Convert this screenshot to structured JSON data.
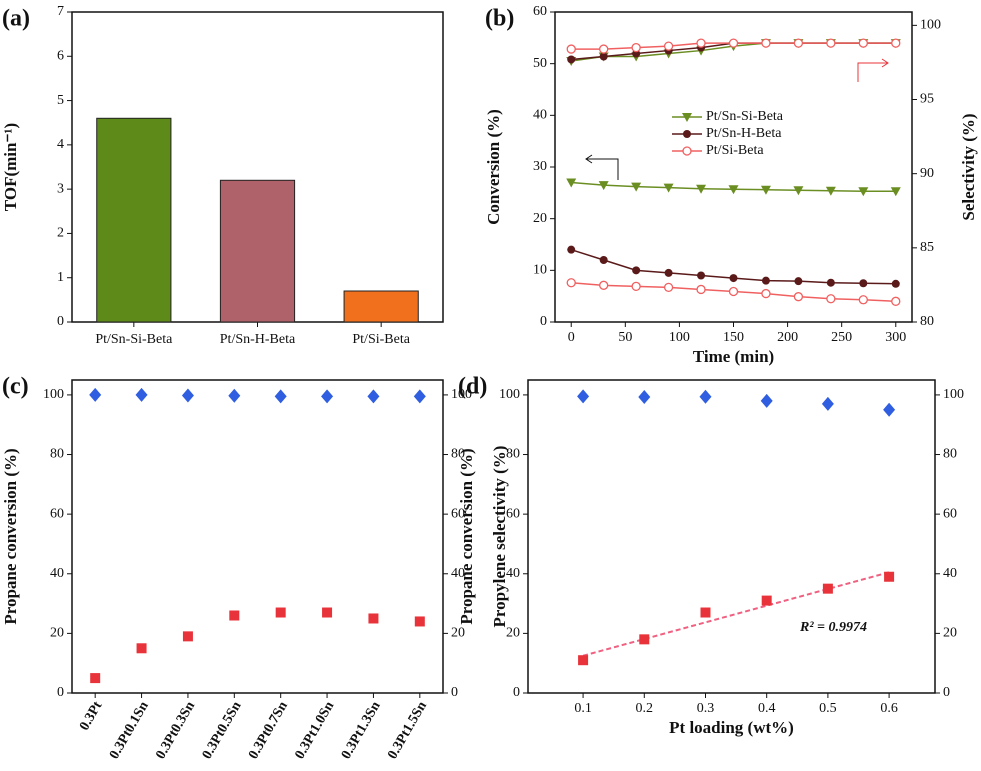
{
  "chart_data": [
    {
      "type": "bar",
      "label": "(a)",
      "y_label": "TOF(min⁻¹)",
      "categories": [
        "Pt/Sn-Si-Beta",
        "Pt/Sn-H-Beta",
        "Pt/Si-Beta"
      ],
      "values": [
        4.6,
        3.2,
        0.7
      ],
      "colors": [
        "#5e8a1a",
        "#b0626b",
        "#f0701e"
      ],
      "ylim": [
        0,
        7
      ],
      "yticks": [
        0,
        1,
        2,
        3,
        4,
        5,
        6,
        7
      ]
    },
    {
      "type": "line",
      "label": "(b)",
      "x_label": "Time (min)",
      "y_label": "Conversion (%)",
      "y2_label": "Selectivity (%)",
      "y2_color": "#e8333a",
      "x": [
        0,
        30,
        60,
        90,
        120,
        150,
        180,
        210,
        240,
        270,
        300
      ],
      "xlim": [
        -15,
        315
      ],
      "xticks": [
        0,
        50,
        100,
        150,
        200,
        250,
        300
      ],
      "ylim": [
        0,
        60
      ],
      "yticks": [
        0,
        10,
        20,
        30,
        40,
        50,
        60
      ],
      "y2lim": [
        80,
        100.9
      ],
      "y2ticks": [
        80,
        85,
        90,
        95,
        100
      ],
      "series": [
        {
          "name": "Pt/Sn-Si-Beta",
          "color": "#6b8e23",
          "marker": "triangle",
          "values": [
            27,
            26.5,
            26.2,
            26,
            25.8,
            25.7,
            25.6,
            25.5,
            25.4,
            25.3,
            25.3
          ],
          "y2_values": [
            97.6,
            97.9,
            97.9,
            98.1,
            98.3,
            98.6,
            98.8,
            98.8,
            98.8,
            98.8,
            98.8
          ]
        },
        {
          "name": "Pt/Sn-H-Beta",
          "color": "#5a1a1a",
          "marker": "circle",
          "values": [
            14,
            12,
            10,
            9.5,
            9,
            8.5,
            8,
            7.9,
            7.6,
            7.5,
            7.4
          ],
          "y2_values": [
            97.7,
            97.9,
            98.1,
            98.3,
            98.5,
            98.8,
            98.8,
            98.8,
            98.8,
            98.8,
            98.8
          ]
        },
        {
          "name": "Pt/Si-Beta",
          "color": "#f06060",
          "marker": "open-circle",
          "values": [
            7.6,
            7.1,
            6.9,
            6.7,
            6.3,
            5.9,
            5.5,
            4.9,
            4.5,
            4.3,
            4.0
          ],
          "y2_values": [
            98.4,
            98.4,
            98.5,
            98.6,
            98.8,
            98.8,
            98.8,
            98.8,
            98.8,
            98.8,
            98.8
          ]
        }
      ]
    },
    {
      "type": "scatter",
      "label": "(c)",
      "y_label": "Propane conversion (%)",
      "y2_label": "Propylene selectivity (%)",
      "y_color": "#e8333a",
      "y2_color": "#2f5fe0",
      "categories": [
        "0.3Pt",
        "0.3Pt0.1Sn",
        "0.3Pt0.3Sn",
        "0.3Pt0.5Sn",
        "0.3Pt0.7Sn",
        "0.3Pt1.0Sn",
        "0.3Pt1.3Sn",
        "0.3Pt1.5Sn"
      ],
      "ylim": [
        0,
        105
      ],
      "yticks": [
        0,
        20,
        40,
        60,
        80,
        100
      ],
      "y2lim": [
        0,
        105
      ],
      "y2ticks": [
        0,
        20,
        40,
        60,
        80,
        100
      ],
      "series": [
        {
          "color": "#e8333a",
          "marker": "square",
          "values": [
            5,
            15,
            19,
            26,
            27,
            27,
            25,
            24
          ]
        },
        {
          "color": "#2f5fe0",
          "marker": "diamond",
          "axis": "y2",
          "values": [
            100,
            100,
            99.8,
            99.7,
            99.5,
            99.5,
            99.5,
            99.5
          ]
        }
      ]
    },
    {
      "type": "scatter",
      "label": "(d)",
      "x_label": "Pt loading (wt%)",
      "y_label": "Propane conversion (%)",
      "y2_label": "Propylene selectivity (%)",
      "y_color": "#e8333a",
      "y2_color": "#2f5fe0",
      "annotation": "R² = 0.9974",
      "x": [
        0.1,
        0.2,
        0.3,
        0.4,
        0.5,
        0.6
      ],
      "xlim": [
        0.01,
        0.675
      ],
      "xticks": [
        0.1,
        0.2,
        0.3,
        0.4,
        0.5,
        0.6
      ],
      "ylim": [
        0,
        105
      ],
      "yticks": [
        0,
        20,
        40,
        60,
        80,
        100
      ],
      "y2lim": [
        0,
        105
      ],
      "y2ticks": [
        0,
        20,
        40,
        60,
        80,
        100
      ],
      "fit": {
        "x": [
          0.1,
          0.6
        ],
        "values": [
          12.5,
          40.5
        ],
        "color": "#f06080"
      },
      "series": [
        {
          "color": "#e8333a",
          "marker": "square",
          "values": [
            11,
            18,
            27,
            31,
            35,
            39
          ]
        },
        {
          "color": "#2f5fe0",
          "marker": "diamond",
          "axis": "y2",
          "values": [
            99.5,
            99.3,
            99.4,
            98,
            97,
            95
          ]
        }
      ]
    }
  ]
}
